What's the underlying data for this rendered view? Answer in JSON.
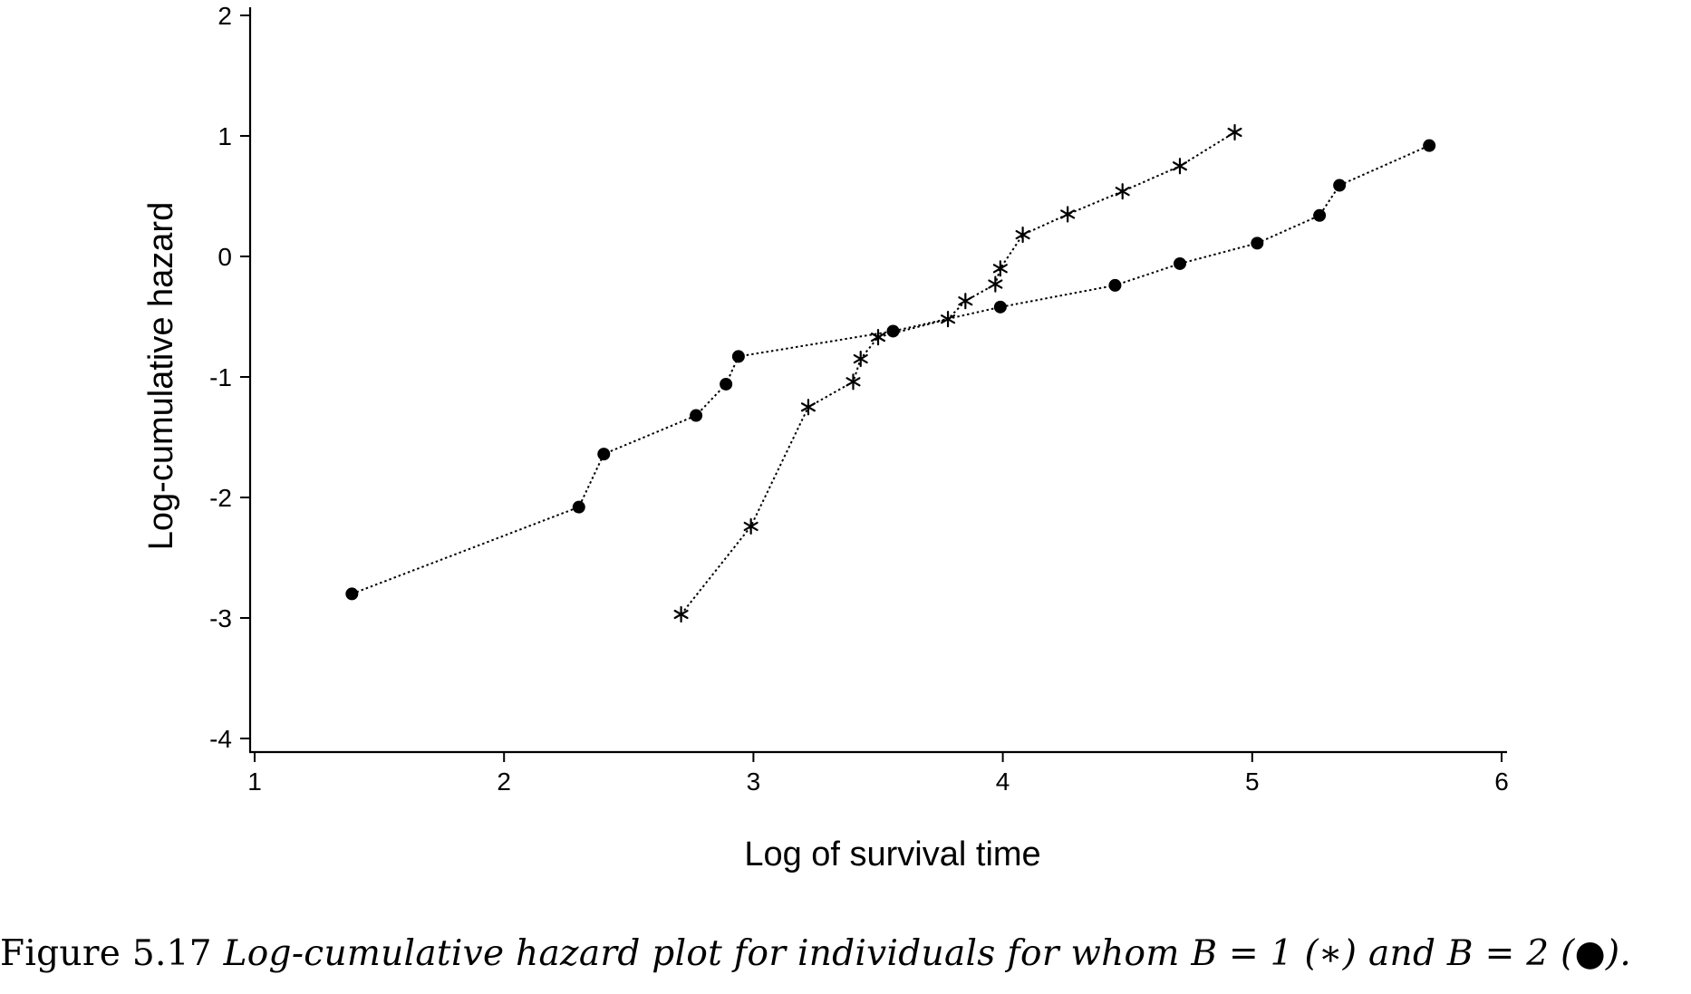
{
  "chart_data": {
    "type": "scatter",
    "xlabel": "Log of survival time",
    "ylabel": "Log-cumulative hazard",
    "xlim": [
      1,
      6
    ],
    "ylim": [
      -4,
      2
    ],
    "xticks": [
      "1",
      "2",
      "3",
      "4",
      "5",
      "6"
    ],
    "yticks": [
      "2",
      "1",
      "0",
      "-1",
      "-2",
      "-3",
      "-4"
    ],
    "grid": false,
    "legend": "none",
    "line_style": "dotted",
    "series": [
      {
        "marker": "asterisk",
        "x": [
          2.71,
          2.99,
          3.22,
          3.4,
          3.43,
          3.5,
          3.78,
          3.85,
          3.97,
          3.99,
          4.08,
          4.26,
          4.48,
          4.71,
          4.93
        ],
        "y": [
          -2.97,
          -2.24,
          -1.25,
          -1.04,
          -0.85,
          -0.67,
          -0.52,
          -0.37,
          -0.23,
          -0.1,
          0.18,
          0.35,
          0.54,
          0.75,
          1.03
        ]
      },
      {
        "marker": "dot",
        "x": [
          1.39,
          2.3,
          2.4,
          2.77,
          2.89,
          2.94,
          3.56,
          3.99,
          4.45,
          4.71,
          5.02,
          5.27,
          5.35,
          5.71
        ],
        "y": [
          -2.8,
          -2.08,
          -1.64,
          -1.32,
          -1.06,
          -0.83,
          -0.62,
          -0.42,
          -0.24,
          -0.06,
          0.11,
          0.34,
          0.59,
          0.92
        ]
      }
    ]
  },
  "caption": {
    "number": "Figure 5.17",
    "text": "Log-cumulative hazard plot for individuals for whom B = 1 (∗) and B = 2 (●)."
  }
}
